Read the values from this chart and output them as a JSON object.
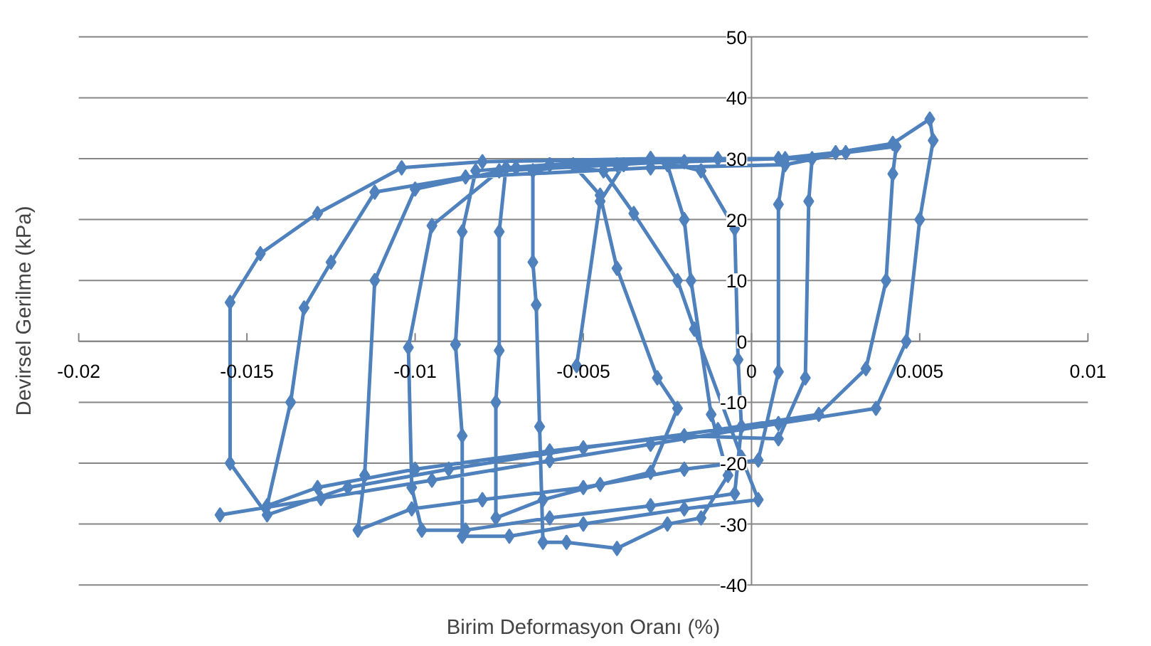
{
  "chart_data": {
    "type": "line",
    "xlabel": "Birim Deformasyon Oranı (%)",
    "ylabel": "Devirsel Gerilme (kPa)",
    "xlim": [
      -0.02,
      0.01
    ],
    "ylim": [
      -40,
      50
    ],
    "xticks": [
      -0.02,
      -0.015,
      -0.01,
      -0.005,
      0,
      0.005,
      0.01
    ],
    "yticks": [
      -40,
      -30,
      -20,
      -10,
      0,
      10,
      20,
      30,
      40,
      50
    ],
    "grid": "y",
    "marker": "diamond",
    "line_style": "solid",
    "series": [
      {
        "color": "#4f81bd",
        "x": [
          -0.0158,
          -0.0128,
          -0.0095,
          -0.006,
          -0.003,
          0.0008,
          0.0037,
          0.0046,
          0.005,
          0.0054,
          0.0053,
          0.0042,
          0.0025,
          0.0008,
          -0.003,
          -0.008,
          -0.0104,
          -0.0129,
          -0.0146,
          -0.0155,
          -0.0155,
          -0.0144,
          -0.012,
          -0.009,
          -0.005,
          -0.001,
          0.002,
          0.0034,
          0.004,
          0.0042,
          0.0043,
          0.0028,
          0.001,
          -0.003,
          -0.0085,
          -0.0112,
          -0.0125,
          -0.0133,
          -0.0137,
          -0.0144,
          -0.0129,
          -0.01,
          -0.006,
          -0.002,
          0.0008,
          0.0016,
          0.0017,
          0.0018,
          0.0008,
          -0.002,
          -0.007,
          -0.01,
          -0.0112,
          -0.0115,
          -0.0117,
          -0.0101,
          -0.008,
          -0.005,
          -0.002,
          0.0002,
          0.0008,
          0.0008,
          0.001,
          -0.001,
          -0.004,
          -0.0075,
          -0.0095,
          -0.0102,
          -0.0101,
          -0.0098,
          -0.0085,
          -0.006,
          -0.003,
          -0.0005,
          -0.0003,
          -0.0004,
          -0.0005,
          -0.0015,
          -0.003,
          -0.006,
          -0.0082,
          -0.0086,
          -0.0088,
          -0.0086,
          -0.0086,
          -0.0072,
          -0.005,
          -0.002,
          0.0002,
          -0.0003,
          -0.0017,
          -0.0022,
          -0.0035,
          -0.0044,
          -0.006,
          -0.0073,
          -0.0075,
          -0.0075,
          -0.0076,
          -0.0076,
          -0.0062,
          -0.0045,
          -0.003,
          -0.0022,
          -0.0028,
          -0.004,
          -0.0045,
          -0.0053,
          -0.0065,
          -0.0065,
          -0.0064,
          -0.0063,
          -0.0062,
          -0.0055,
          -0.004,
          -0.0025,
          -0.0015,
          -0.0007,
          -0.0012,
          -0.0018,
          -0.002,
          -0.0025,
          -0.003,
          -0.0038,
          -0.0045,
          -0.0052
        ],
        "values": [
          -28.5,
          -25.8,
          -22.8,
          -19.6,
          -16.9,
          -13.5,
          -11,
          0,
          20,
          33,
          36.5,
          32.5,
          31,
          30,
          30,
          29.5,
          28.5,
          21,
          14.4,
          6.4,
          -20,
          -28.5,
          -24,
          -21,
          -17.5,
          -14.5,
          -12,
          -4.5,
          10,
          27.5,
          32,
          31,
          29,
          28.5,
          27,
          24.5,
          13,
          5.5,
          -10,
          -27,
          -24,
          -21,
          -18,
          -15.5,
          -16,
          -6,
          23,
          30,
          30,
          29.5,
          28.5,
          25,
          10,
          -22,
          -31,
          -27.5,
          -26,
          -24,
          -21,
          -19.5,
          -5,
          22.5,
          30,
          30,
          29,
          28,
          19,
          -1,
          -24,
          -31,
          -31,
          -29,
          -27,
          -25,
          -14,
          -3,
          18.5,
          28,
          30,
          29,
          28,
          18,
          -0.5,
          -15.5,
          -32,
          -32,
          -30,
          -27.5,
          -26,
          -19,
          2,
          10,
          21,
          28,
          29,
          28.5,
          18,
          -1.5,
          -10,
          -29,
          -26,
          -23.5,
          -21.5,
          -11,
          -6,
          12,
          24,
          29,
          28,
          13,
          6,
          -14,
          -33,
          -33,
          -34,
          -30,
          -29,
          -22,
          -12,
          10,
          20,
          29,
          30,
          29,
          23,
          -4
        ]
      }
    ]
  }
}
